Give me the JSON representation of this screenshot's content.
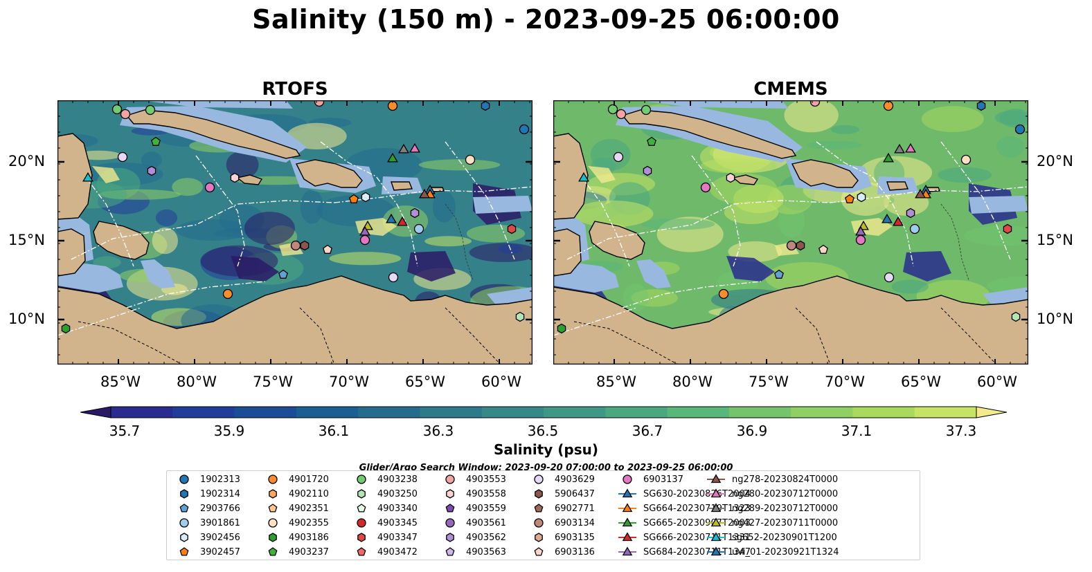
{
  "title": "Salinity (150 m) - 2023-09-25 06:00:00",
  "panels": [
    {
      "title": "RTOFS"
    },
    {
      "title": "CMEMS"
    }
  ],
  "lat_ticks": [
    "20°N",
    "15°N",
    "10°N"
  ],
  "lon_ticks": [
    "85°W",
    "80°W",
    "75°W",
    "70°W",
    "65°W",
    "60°W"
  ],
  "colorbar": {
    "ticks": [
      "35.7",
      "35.9",
      "36.1",
      "36.3",
      "36.5",
      "36.7",
      "36.9",
      "37.1",
      "37.3"
    ],
    "label": "Salinity (psu)",
    "colors": [
      "#2a1a66",
      "#292c8e",
      "#213d9a",
      "#1b4d97",
      "#1a5e93",
      "#236c8e",
      "#2e7a8b",
      "#378987",
      "#3f9885",
      "#4aa880",
      "#5ab77a",
      "#73c46d",
      "#8fcf64",
      "#aad95e",
      "#c6e364",
      "#f3ea8e"
    ]
  },
  "map_colors": {
    "land": "#d2b48c",
    "shelf": "#98b8e0",
    "ocean_rtofs": "#35818a",
    "ocean_cmems": "#6eb96a"
  },
  "search_window": "Glider/Argo Search Window: 2023-09-20 07:00:00 to 2023-09-25 06:00:00",
  "legend": [
    {
      "label": "1902313",
      "marker": "circle",
      "color": "#1f77b4"
    },
    {
      "label": "1902314",
      "marker": "hexagon",
      "color": "#1f77b4"
    },
    {
      "label": "2903766",
      "marker": "pentagon",
      "color": "#5fa2d7"
    },
    {
      "label": "3901861",
      "marker": "circle",
      "color": "#9fcbec"
    },
    {
      "label": "3902456",
      "marker": "hexagon",
      "color": "#d9ecf9"
    },
    {
      "label": "3902457",
      "marker": "pentagon",
      "color": "#ff7f0e"
    },
    {
      "label": "4901720",
      "marker": "circle",
      "color": "#ff8c2a"
    },
    {
      "label": "4902110",
      "marker": "hexagon",
      "color": "#ffa960"
    },
    {
      "label": "4902351",
      "marker": "pentagon",
      "color": "#ffc892"
    },
    {
      "label": "4902355",
      "marker": "circle",
      "color": "#ffe1c2"
    },
    {
      "label": "4903186",
      "marker": "hexagon",
      "color": "#2ca02c"
    },
    {
      "label": "4903237",
      "marker": "pentagon",
      "color": "#3cb43c"
    },
    {
      "label": "4903238",
      "marker": "circle",
      "color": "#72cc72"
    },
    {
      "label": "4903250",
      "marker": "hexagon",
      "color": "#b3e6b3"
    },
    {
      "label": "4903340",
      "marker": "pentagon",
      "color": "#e5f9e0"
    },
    {
      "label": "4903345",
      "marker": "circle",
      "color": "#d62728"
    },
    {
      "label": "4903347",
      "marker": "hexagon",
      "color": "#e04848"
    },
    {
      "label": "4903472",
      "marker": "pentagon",
      "color": "#ee6a6a"
    },
    {
      "label": "4903553",
      "marker": "circle",
      "color": "#f4a3a3"
    },
    {
      "label": "4903558",
      "marker": "hexagon",
      "color": "#fbd3d3"
    },
    {
      "label": "4903559",
      "marker": "pentagon",
      "color": "#7b4bb0"
    },
    {
      "label": "4903561",
      "marker": "circle",
      "color": "#9467bd"
    },
    {
      "label": "4903562",
      "marker": "hexagon",
      "color": "#b08fd6"
    },
    {
      "label": "4903563",
      "marker": "pentagon",
      "color": "#cdb7ea"
    },
    {
      "label": "4903629",
      "marker": "circle",
      "color": "#e6d9f7"
    },
    {
      "label": "5906437",
      "marker": "hexagon",
      "color": "#8c564b"
    },
    {
      "label": "6902771",
      "marker": "pentagon",
      "color": "#a1685c"
    },
    {
      "label": "6903134",
      "marker": "circle",
      "color": "#c0877b"
    },
    {
      "label": "6903135",
      "marker": "hexagon",
      "color": "#e0a995"
    },
    {
      "label": "6903136",
      "marker": "pentagon",
      "color": "#f9d6c8"
    },
    {
      "label": "6903137",
      "marker": "circle",
      "color": "#e377c2"
    },
    {
      "label": "SG630-20230826T2004",
      "marker": "triangle",
      "color": "#1f77b4"
    },
    {
      "label": "SG664-20230719T1323",
      "marker": "triangle",
      "color": "#ff7f0e"
    },
    {
      "label": "SG665-20230907T2003",
      "marker": "triangle",
      "color": "#2ca02c"
    },
    {
      "label": "SG666-20230711T1331",
      "marker": "triangle",
      "color": "#d62728"
    },
    {
      "label": "SG684-20230711T1347",
      "marker": "triangle",
      "color": "#9467bd"
    },
    {
      "label": "ng278-20230824T0000",
      "marker": "triangle",
      "color": "#8c564b"
    },
    {
      "label": "ng280-20230712T0000",
      "marker": "triangle",
      "color": "#e377c2"
    },
    {
      "label": "ng289-20230712T0000",
      "marker": "triangle",
      "color": "#7f7f7f"
    },
    {
      "label": "ng427-20230711T0000",
      "marker": "triangle",
      "color": "#bcbd22"
    },
    {
      "label": "sg652-20230901T1200",
      "marker": "triangle",
      "color": "#17becf"
    },
    {
      "label": "uvi_01-20230921T1324",
      "marker": "triangle",
      "color": "#1f77b4"
    }
  ]
}
